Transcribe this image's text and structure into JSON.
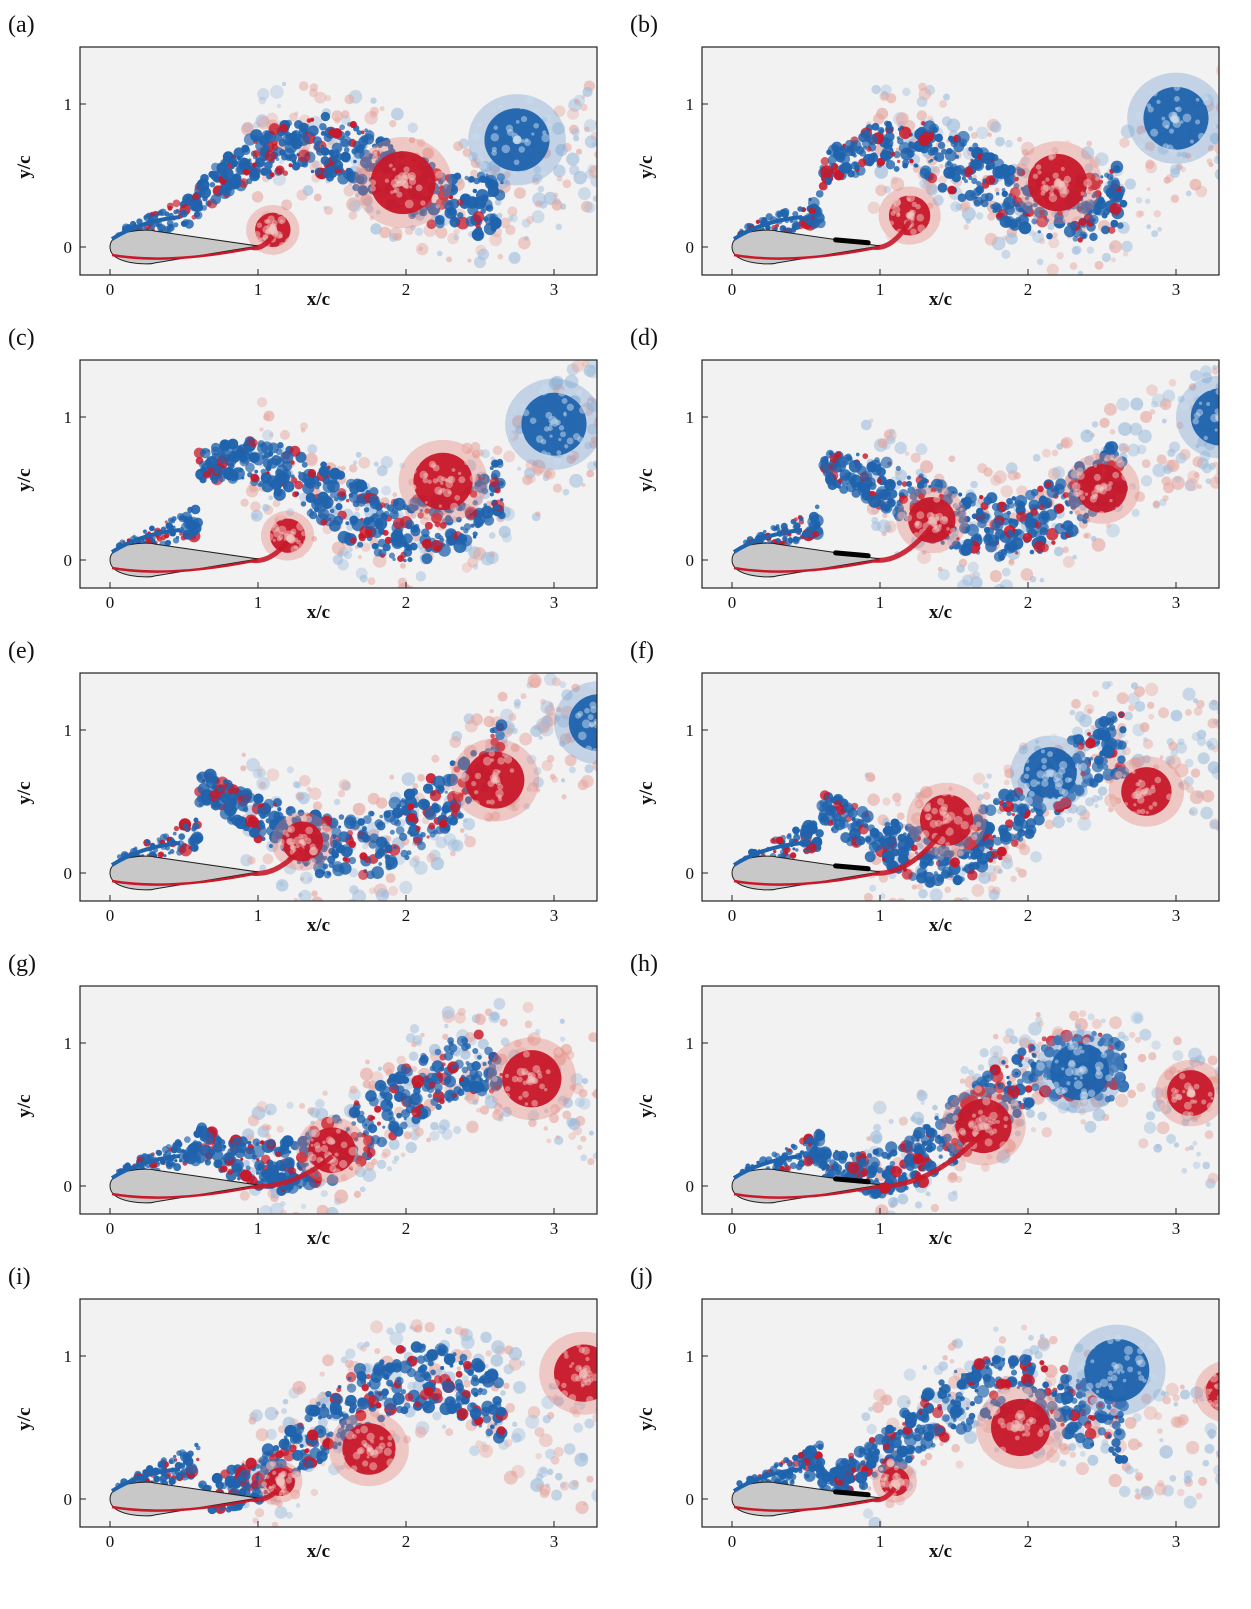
{
  "figure": {
    "x_axis_label": "x/c",
    "y_axis_label": "y/c",
    "x_ticks": [
      "0",
      "1",
      "2",
      "3"
    ],
    "y_ticks": [
      "0",
      "1"
    ],
    "colors": {
      "positive_vorticity": "#c8182a",
      "negative_vorticity": "#1f63ad",
      "background_field": "#f2f2f2",
      "airfoil_fill": "#c8c8c8"
    },
    "panels": [
      {
        "label": "(a)",
        "plate": false
      },
      {
        "label": "(b)",
        "plate": true
      },
      {
        "label": "(c)",
        "plate": false
      },
      {
        "label": "(d)",
        "plate": true
      },
      {
        "label": "(e)",
        "plate": false
      },
      {
        "label": "(f)",
        "plate": true
      },
      {
        "label": "(g)",
        "plate": false
      },
      {
        "label": "(h)",
        "plate": true
      },
      {
        "label": "(i)",
        "plate": false
      },
      {
        "label": "(j)",
        "plate": true
      }
    ]
  }
}
